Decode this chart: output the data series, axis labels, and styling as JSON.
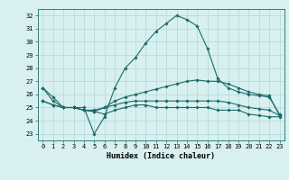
{
  "xlabel": "Humidex (Indice chaleur)",
  "ylabel": "",
  "xlim": [
    -0.5,
    23.5
  ],
  "ylim": [
    22.5,
    32.5
  ],
  "yticks": [
    23,
    24,
    25,
    26,
    27,
    28,
    29,
    30,
    31,
    32
  ],
  "xticks": [
    0,
    1,
    2,
    3,
    4,
    5,
    6,
    7,
    8,
    9,
    10,
    11,
    12,
    13,
    14,
    15,
    16,
    17,
    18,
    19,
    20,
    21,
    22,
    23
  ],
  "background_color": "#d8f0f0",
  "grid_color": "#b0d8d8",
  "line_color": "#1a6b6b",
  "lines": [
    {
      "x": [
        0,
        1,
        2,
        3,
        4,
        5,
        6,
        7,
        8,
        9,
        10,
        11,
        12,
        13,
        14,
        15,
        16,
        17,
        18,
        19,
        20,
        21,
        22,
        23
      ],
      "y": [
        26.5,
        25.8,
        25.0,
        25.0,
        25.0,
        23.0,
        24.3,
        26.5,
        28.0,
        28.8,
        29.9,
        30.8,
        31.4,
        32.0,
        31.7,
        31.2,
        29.5,
        27.2,
        26.5,
        26.2,
        26.0,
        25.9,
        25.8,
        24.5
      ],
      "marker": "D",
      "markersize": 1.8
    },
    {
      "x": [
        0,
        1,
        2,
        3,
        4,
        5,
        6,
        7,
        8,
        9,
        10,
        11,
        12,
        13,
        14,
        15,
        16,
        17,
        18,
        19,
        20,
        21,
        22,
        23
      ],
      "y": [
        26.5,
        25.5,
        25.0,
        25.0,
        24.8,
        24.8,
        25.0,
        25.5,
        25.8,
        26.0,
        26.2,
        26.4,
        26.6,
        26.8,
        27.0,
        27.1,
        27.0,
        27.0,
        26.8,
        26.5,
        26.2,
        26.0,
        25.9,
        24.4
      ],
      "marker": "D",
      "markersize": 1.8
    },
    {
      "x": [
        0,
        1,
        2,
        3,
        4,
        5,
        6,
        7,
        8,
        9,
        10,
        11,
        12,
        13,
        14,
        15,
        16,
        17,
        18,
        19,
        20,
        21,
        22,
        23
      ],
      "y": [
        25.5,
        25.2,
        25.0,
        25.0,
        24.8,
        24.7,
        25.0,
        25.2,
        25.4,
        25.5,
        25.5,
        25.5,
        25.5,
        25.5,
        25.5,
        25.5,
        25.5,
        25.5,
        25.4,
        25.2,
        25.0,
        24.9,
        24.8,
        24.4
      ],
      "marker": "D",
      "markersize": 1.8
    },
    {
      "x": [
        0,
        1,
        2,
        3,
        4,
        5,
        6,
        7,
        8,
        9,
        10,
        11,
        12,
        13,
        14,
        15,
        16,
        17,
        18,
        19,
        20,
        21,
        22,
        23
      ],
      "y": [
        25.5,
        25.2,
        25.0,
        25.0,
        24.8,
        24.7,
        24.5,
        24.8,
        25.0,
        25.2,
        25.2,
        25.0,
        25.0,
        25.0,
        25.0,
        25.0,
        25.0,
        24.8,
        24.8,
        24.8,
        24.5,
        24.4,
        24.3,
        24.3
      ],
      "marker": "D",
      "markersize": 1.8
    }
  ],
  "axis_fontsize": 6,
  "tick_fontsize": 5
}
